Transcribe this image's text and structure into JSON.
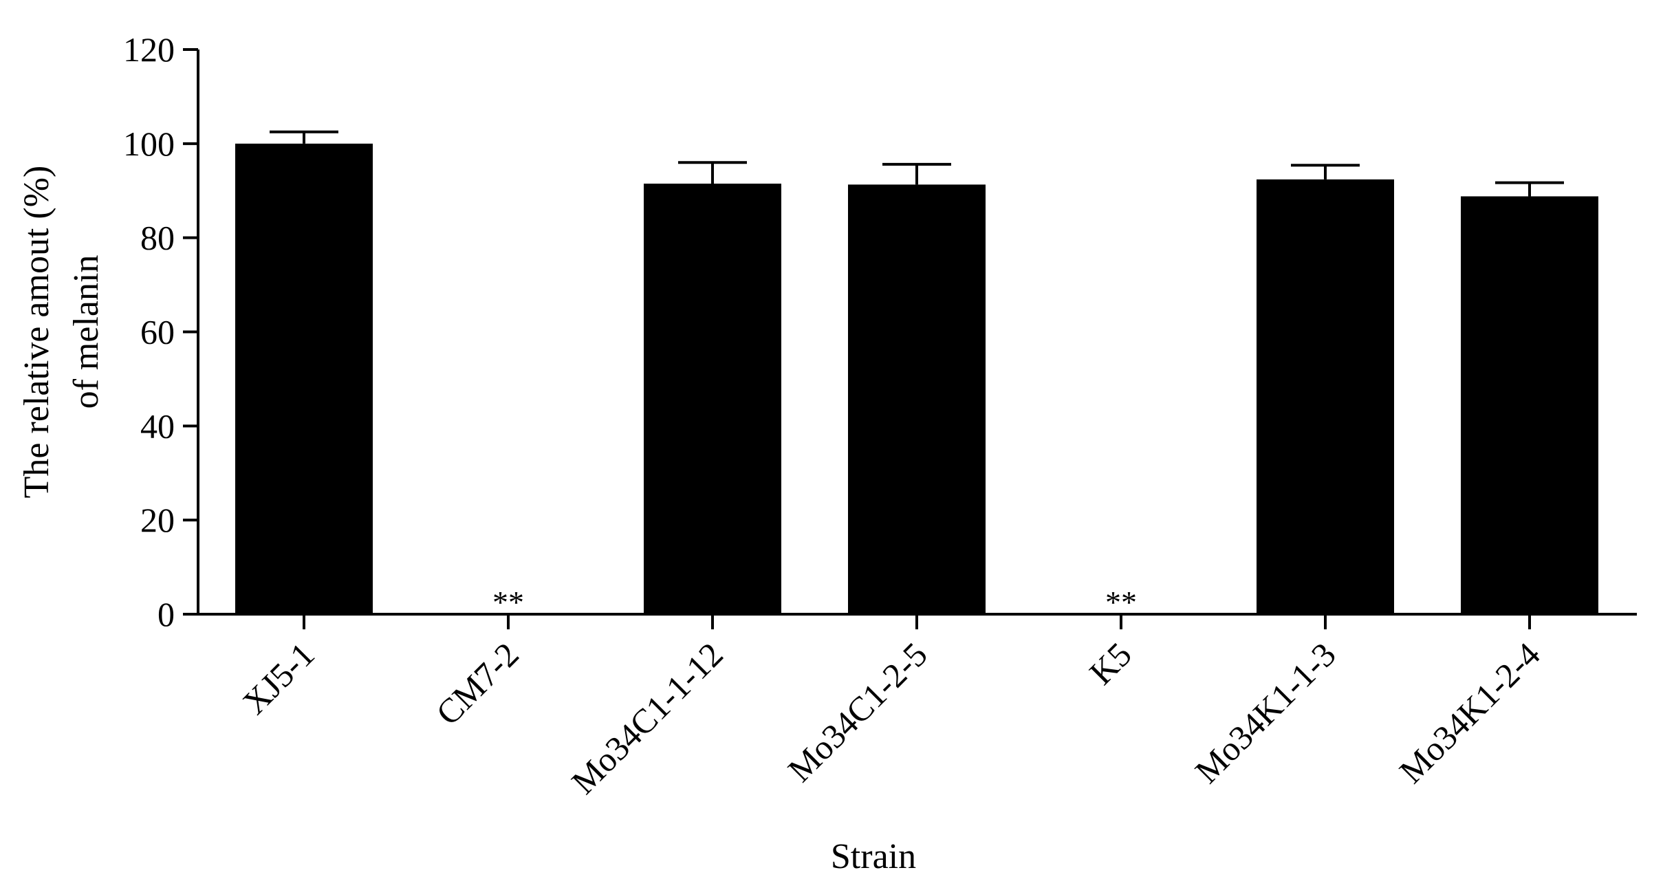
{
  "chart_data": {
    "type": "bar",
    "categories": [
      "XJ5-1",
      "CM7-2",
      "Mo34C1-1-12",
      "Mo34C1-2-5",
      "K5",
      "Mo34K1-1-3",
      "Mo34K1-2-4"
    ],
    "values": [
      100,
      0,
      91.5,
      91.3,
      0,
      92.4,
      88.8
    ],
    "error": [
      2.5,
      0,
      4.5,
      4.3,
      0,
      3.0,
      2.9
    ],
    "annotations": [
      "",
      "**",
      "",
      "",
      "**",
      "",
      ""
    ],
    "xlabel": "Strain",
    "ylabel": [
      "The relative amout (%)",
      "of melanin"
    ],
    "ylim": [
      0,
      120
    ],
    "yticks": [
      0,
      20,
      40,
      60,
      80,
      100,
      120
    ],
    "bar_color": "#000000",
    "grid": false,
    "legend": "none"
  }
}
